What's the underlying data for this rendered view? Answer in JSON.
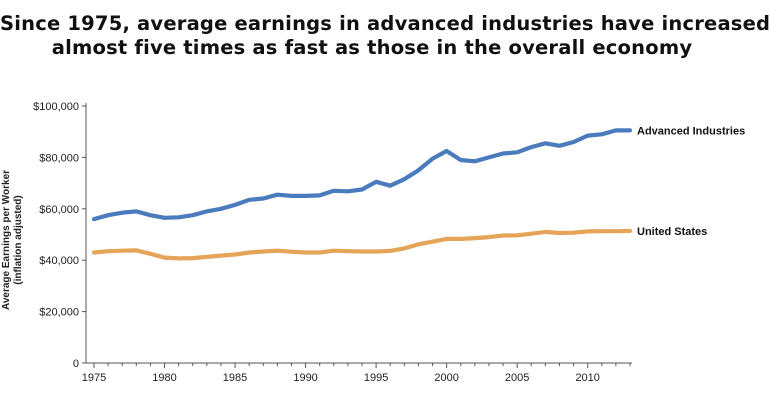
{
  "title": {
    "line1": "Since 1975, average earnings in advanced industries have increased",
    "line2": "almost five times as fast as those in the overall economy"
  },
  "chart_data": {
    "type": "line",
    "ylabel_line1": "Average Earnings per Worker",
    "ylabel_line2": "(inflation adjusted)",
    "xlabel": "",
    "ylim": [
      0,
      100000
    ],
    "xlim": [
      1975,
      2013
    ],
    "yticks": [
      0,
      20000,
      40000,
      60000,
      80000,
      100000
    ],
    "ytick_labels": [
      "0",
      "$20,000",
      "$40,000",
      "$60,000",
      "$80,000",
      "$100,000"
    ],
    "xticks": [
      1975,
      1980,
      1985,
      1990,
      1995,
      2000,
      2005,
      2010
    ],
    "xtick_labels": [
      "1975",
      "1980",
      "1985",
      "1990",
      "1995",
      "2000",
      "2005",
      "2010"
    ],
    "grid": false,
    "x": [
      1975,
      1976,
      1977,
      1978,
      1979,
      1980,
      1981,
      1982,
      1983,
      1984,
      1985,
      1986,
      1987,
      1988,
      1989,
      1990,
      1991,
      1992,
      1993,
      1994,
      1995,
      1996,
      1997,
      1998,
      1999,
      2000,
      2001,
      2002,
      2003,
      2004,
      2005,
      2006,
      2007,
      2008,
      2009,
      2010,
      2011,
      2012,
      2013
    ],
    "series": [
      {
        "name": "Advanced Industries",
        "color": "#4a7bbd",
        "values": [
          56000,
          57500,
          58500,
          59000,
          57500,
          56500,
          56700,
          57500,
          59000,
          60000,
          61500,
          63500,
          64000,
          65500,
          65000,
          65000,
          65200,
          67000,
          66800,
          67500,
          70500,
          69000,
          71500,
          75000,
          79500,
          82500,
          79000,
          78500,
          80000,
          81500,
          82000,
          84000,
          85500,
          84500,
          86000,
          88500,
          89000,
          90500,
          90500
        ]
      },
      {
        "name": "United States",
        "color": "#e5a457",
        "values": [
          43000,
          43500,
          43700,
          43800,
          42500,
          41000,
          40700,
          40800,
          41300,
          41800,
          42200,
          43000,
          43400,
          43700,
          43300,
          43000,
          43000,
          43700,
          43500,
          43400,
          43400,
          43600,
          44600,
          46200,
          47200,
          48300,
          48300,
          48600,
          49000,
          49600,
          49700,
          50300,
          51000,
          50600,
          50700,
          51200,
          51300,
          51300,
          51400
        ]
      }
    ]
  }
}
